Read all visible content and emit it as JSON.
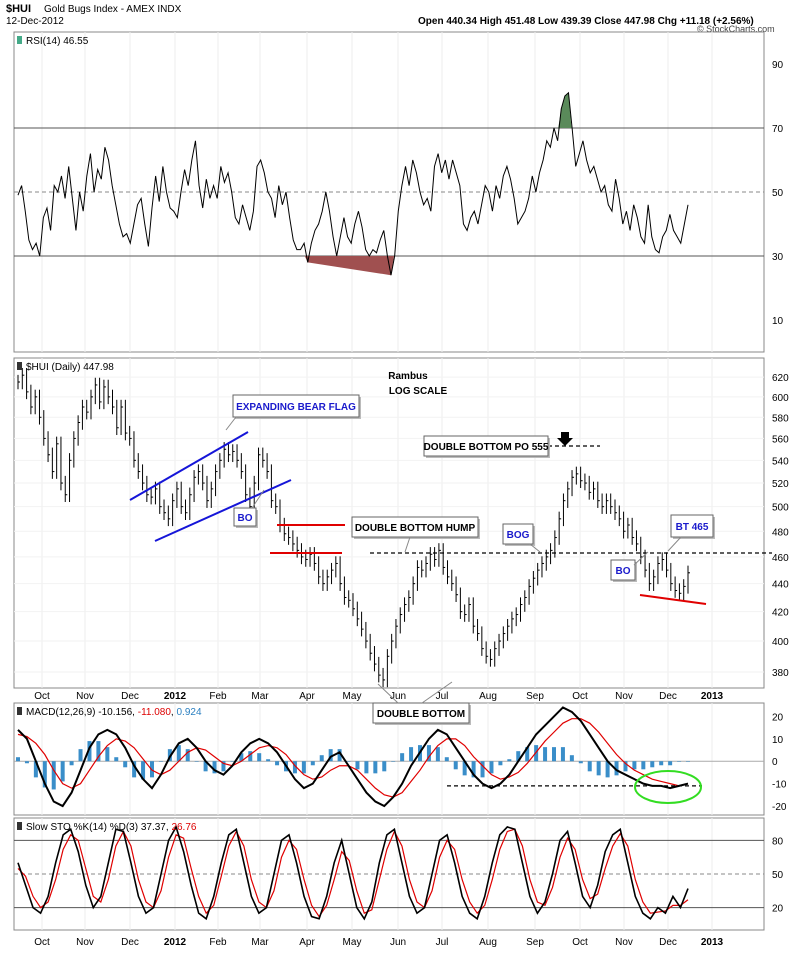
{
  "header": {
    "symbol": "$HUI",
    "name": "Gold Bugs Index - AMEX INDX",
    "date": "12-Dec-2012",
    "quote_text": "Open 440.34  High 451.48  Low 439.39  Close 447.98  Chg +11.18 (+2.56%)",
    "watermark": "© StockCharts.com"
  },
  "months": [
    "Oct",
    "Nov",
    "Dec",
    "2012",
    "Feb",
    "Mar",
    "Apr",
    "May",
    "Jun",
    "Jul",
    "Aug",
    "Sep",
    "Oct",
    "Nov",
    "Dec",
    "2013"
  ],
  "chart_data": [
    {
      "type": "line",
      "name": "rsi",
      "title": "RSI(14) 46.55",
      "ylim": [
        0,
        100
      ],
      "yticks": [
        10,
        30,
        50,
        70,
        90
      ],
      "reference_lines": [
        30,
        50,
        70
      ],
      "overbought_fill_color": "#5a8a5a",
      "oversold_fill_color": "#a05050",
      "series": [
        {
          "values": [
            49,
            52,
            44,
            35,
            32,
            34,
            30,
            42,
            45,
            38,
            52,
            50,
            55,
            48,
            58,
            48,
            38,
            50,
            44,
            55,
            62,
            50,
            57,
            54,
            64,
            60,
            52,
            46,
            40,
            36,
            37,
            34,
            40,
            46,
            48,
            40,
            33,
            45,
            55,
            47,
            58,
            50,
            45,
            44,
            42,
            50,
            57,
            52,
            60,
            66,
            52,
            45,
            54,
            48,
            52,
            48,
            58,
            53,
            56,
            50,
            42,
            40,
            46,
            42,
            38,
            44,
            58,
            60,
            56,
            50,
            48,
            42,
            52,
            46,
            50,
            42,
            35,
            32,
            32,
            34,
            28,
            34,
            38,
            40,
            44,
            50,
            44,
            36,
            30,
            36,
            42,
            36,
            34,
            40,
            44,
            39,
            32,
            30,
            32,
            31,
            35,
            38,
            30,
            24,
            30,
            44,
            52,
            58,
            52,
            60,
            56,
            50,
            46,
            48,
            44,
            58,
            62,
            56,
            60,
            54,
            60,
            56,
            52,
            40,
            38,
            42,
            44,
            40,
            46,
            52,
            50,
            44,
            52,
            48,
            55,
            58,
            54,
            48,
            40,
            42,
            44,
            48,
            55,
            50,
            56,
            60,
            66,
            64,
            70,
            66,
            76,
            80,
            81,
            70,
            58,
            62,
            66,
            60,
            56,
            58,
            54,
            50,
            52,
            46,
            44,
            54,
            48,
            40,
            44,
            38,
            46,
            42,
            36,
            34,
            46,
            36,
            32,
            31,
            36,
            38,
            43,
            38,
            36,
            34,
            40,
            46
          ]
        }
      ]
    },
    {
      "type": "ohlc",
      "name": "price",
      "title": "$HUI (Daily) 447.98",
      "scale": "log",
      "ylim": [
        370,
        640
      ],
      "yticks": [
        380,
        400,
        420,
        440,
        460,
        480,
        500,
        520,
        540,
        560,
        580,
        600,
        620
      ],
      "annotations": {
        "rambus": "Rambus",
        "log_scale": "LOG SCALE",
        "expanding_bear_flag": "EXPANDING BEAR FLAG",
        "double_bottom_po": "DOUBLE BOTTOM PO 555",
        "double_bottom_hump": "DOUBLE BOTTOM HUMP",
        "double_bottom": "DOUBLE BOTTOM",
        "bog": "BOG",
        "bt_465": "BT 465",
        "bo_left": "BO",
        "bo_right": "BO"
      },
      "neckline": 463,
      "series": [
        {
          "values": [
            615,
            622,
            605,
            590,
            600,
            580,
            560,
            545,
            530,
            555,
            520,
            510,
            540,
            560,
            575,
            590,
            585,
            600,
            612,
            595,
            610,
            600,
            590,
            570,
            590,
            565,
            560,
            540,
            530,
            520,
            510,
            508,
            515,
            500,
            495,
            490,
            505,
            515,
            500,
            495,
            510,
            525,
            530,
            520,
            505,
            515,
            530,
            540,
            550,
            545,
            548,
            540,
            530,
            510,
            500,
            520,
            545,
            540,
            530,
            505,
            500,
            485,
            478,
            475,
            470,
            465,
            460,
            458,
            462,
            455,
            445,
            440,
            445,
            450,
            455,
            440,
            430,
            428,
            422,
            415,
            408,
            400,
            392,
            385,
            378,
            375,
            390,
            400,
            410,
            418,
            425,
            430,
            440,
            452,
            450,
            455,
            462,
            458,
            465,
            452,
            445,
            440,
            432,
            420,
            418,
            425,
            410,
            405,
            395,
            390,
            388,
            395,
            400,
            405,
            410,
            415,
            418,
            425,
            430,
            438,
            444,
            450,
            455,
            460,
            465,
            475,
            490,
            505,
            515,
            525,
            528,
            522,
            520,
            512,
            515,
            505,
            500,
            505,
            500,
            495,
            490,
            480,
            485,
            475,
            470,
            460,
            450,
            440,
            445,
            455,
            458,
            450,
            440,
            435,
            433,
            438,
            448
          ]
        }
      ]
    },
    {
      "type": "line",
      "name": "macd",
      "title": "MACD(12,26,9)",
      "macd_value": "-10.156",
      "signal_value": "-11.080",
      "histogram_value": "0.924",
      "ylim": [
        -24,
        26
      ],
      "yticks": [
        -20,
        -10,
        0,
        10,
        20
      ],
      "series": [
        {
          "name": "MACD",
          "values": [
            14,
            10,
            0,
            -10,
            -18,
            -20,
            -14,
            -4,
            6,
            12,
            14,
            12,
            6,
            -2,
            -8,
            -12,
            -6,
            2,
            8,
            10,
            6,
            0,
            -4,
            -6,
            -2,
            4,
            8,
            10,
            8,
            4,
            -2,
            -8,
            -12,
            -10,
            -4,
            2,
            4,
            -2,
            -8,
            -14,
            -18,
            -20,
            -16,
            -10,
            -2,
            4,
            10,
            14,
            12,
            6,
            0,
            -6,
            -10,
            -12,
            -10,
            -6,
            0,
            6,
            12,
            16,
            20,
            24,
            22,
            18,
            12,
            6,
            0,
            -4,
            -6,
            -8,
            -10,
            -11,
            -11,
            -12,
            -11,
            -10
          ]
        },
        {
          "name": "Signal",
          "values": [
            12,
            11,
            8,
            3,
            -4,
            -10,
            -12,
            -10,
            -4,
            2,
            7,
            10,
            9,
            6,
            1,
            -4,
            -6,
            -4,
            0,
            4,
            6,
            5,
            2,
            -1,
            -2,
            0,
            3,
            6,
            7,
            6,
            3,
            -2,
            -6,
            -8,
            -7,
            -4,
            -2,
            -2,
            -4,
            -8,
            -12,
            -15,
            -16,
            -14,
            -9,
            -4,
            2,
            7,
            10,
            10,
            7,
            2,
            -2,
            -6,
            -8,
            -7,
            -5,
            -1,
            4,
            9,
            13,
            17,
            19,
            19,
            17,
            13,
            8,
            3,
            -1,
            -4,
            -6,
            -8,
            -9,
            -10,
            -11,
            -10
          ]
        }
      ],
      "reference_line": -11
    },
    {
      "type": "line",
      "name": "stochastic",
      "title": "Slow STO %K(14) %D(3)",
      "k_value": "37.37",
      "d_value": "26.76",
      "ylim": [
        0,
        100
      ],
      "yticks": [
        20,
        50,
        80
      ],
      "reference_lines": [
        20,
        50,
        80
      ],
      "series": [
        {
          "name": "%K",
          "values": [
            60,
            40,
            20,
            15,
            30,
            60,
            85,
            90,
            70,
            40,
            20,
            30,
            60,
            90,
            88,
            60,
            30,
            15,
            20,
            50,
            80,
            92,
            70,
            40,
            15,
            10,
            30,
            60,
            85,
            90,
            60,
            30,
            15,
            20,
            50,
            80,
            85,
            60,
            30,
            12,
            10,
            30,
            60,
            80,
            50,
            20,
            10,
            25,
            60,
            85,
            90,
            60,
            30,
            15,
            20,
            50,
            80,
            85,
            60,
            30,
            15,
            10,
            30,
            60,
            85,
            92,
            90,
            60,
            30,
            15,
            25,
            50,
            80,
            88,
            60,
            30,
            20,
            40,
            70,
            85,
            90,
            60,
            30,
            15,
            10,
            20,
            15,
            30,
            20,
            37
          ]
        },
        {
          "name": "%D",
          "values": [
            55,
            48,
            30,
            20,
            25,
            45,
            72,
            85,
            80,
            55,
            30,
            25,
            45,
            75,
            88,
            75,
            45,
            25,
            20,
            35,
            65,
            85,
            82,
            55,
            30,
            15,
            22,
            48,
            75,
            88,
            75,
            45,
            25,
            20,
            35,
            65,
            80,
            72,
            45,
            22,
            12,
            22,
            45,
            70,
            62,
            35,
            15,
            18,
            45,
            72,
            88,
            75,
            45,
            25,
            20,
            35,
            65,
            80,
            72,
            45,
            25,
            15,
            22,
            45,
            72,
            88,
            90,
            75,
            45,
            25,
            22,
            38,
            65,
            82,
            72,
            45,
            28,
            32,
            55,
            75,
            86,
            75,
            45,
            25,
            15,
            16,
            17,
            22,
            22,
            27
          ]
        }
      ]
    }
  ],
  "colors": {
    "price_bar": "#000000",
    "flag_line": "#1515d8",
    "red_line": "#e00000",
    "macd_line": "#000000",
    "signal_line": "#e00000",
    "histogram": "#3a8ec9",
    "green_ellipse": "#33dd22",
    "label_blue": "#1a1acc",
    "grid": "#cccccc"
  }
}
